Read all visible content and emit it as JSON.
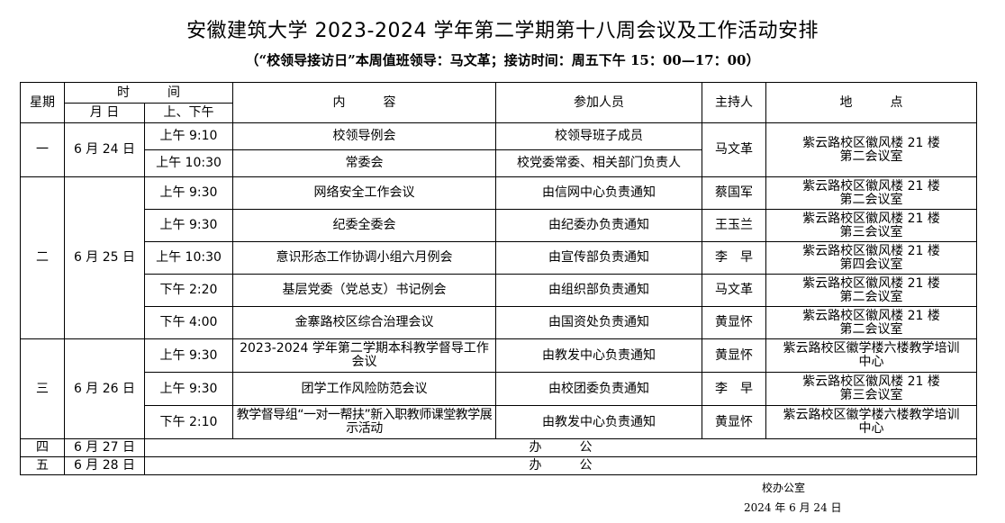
{
  "title": "安徽建筑大学 2023-2024 学年第二学期第十八周会议及工作活动安排",
  "subtitle": "（“校领导接访日”本周值班领导：马文革；接访时间：周五下午 15：00—17：00）",
  "headers": {
    "weekday": "星期",
    "time": "时　　　间",
    "date": "月 日",
    "ampm": "上、下午",
    "content": "内　　　容",
    "participants": "参加人员",
    "host": "主持人",
    "location": "地　　　点"
  },
  "days": [
    {
      "weekday": "一",
      "date": "6 月 24 日",
      "host": "马文革",
      "location": "紫云路校区徽风楼 21 楼第二会议室",
      "items": [
        {
          "time": "上午 9:10",
          "content": "校领导例会",
          "participants": "校领导班子成员"
        },
        {
          "time": "上午 10:30",
          "content": "常委会",
          "participants": "校党委常委、相关部门负责人"
        }
      ]
    },
    {
      "weekday": "二",
      "date": "6 月 25 日",
      "items": [
        {
          "time": "上午 9:30",
          "content": "网络安全工作会议",
          "participants": "由信网中心负责通知",
          "host": "蔡国军",
          "location": "紫云路校区徽风楼 21 楼第二会议室"
        },
        {
          "time": "上午 9:30",
          "content": "纪委全委会",
          "participants": "由纪委办负责通知",
          "host": "王玉兰",
          "location": "紫云路校区徽风楼 21 楼第三会议室"
        },
        {
          "time": "上午 10:30",
          "content": "意识形态工作协调小组六月例会",
          "participants": "由宣传部负责通知",
          "host": "李　早",
          "location": "紫云路校区徽风楼 21 楼第四会议室"
        },
        {
          "time": "下午 2:20",
          "content": "基层党委（党总支）书记例会",
          "participants": "由组织部负责通知",
          "host": "马文革",
          "location": "紫云路校区徽风楼 21 楼第二会议室"
        },
        {
          "time": "下午 4:00",
          "content": "金寨路校区综合治理会议",
          "participants": "由国资处负责通知",
          "host": "黄显怀",
          "location": "紫云路校区徽风楼 21 楼第二会议室"
        }
      ]
    },
    {
      "weekday": "三",
      "date": "6 月 26 日",
      "items": [
        {
          "time": "上午 9:30",
          "content": "2023-2024 学年第二学期本科教学督导工作会议",
          "participants": "由教发中心负责通知",
          "host": "黄显怀",
          "location": "紫云路校区徽学楼六楼教学培训中心"
        },
        {
          "time": "上午 9:30",
          "content": "团学工作风险防范会议",
          "participants": "由校团委负责通知",
          "host": "李　早",
          "location": "紫云路校区徽风楼 21 楼第三会议室"
        },
        {
          "time": "下午 2:10",
          "content": "教学督导组“一对一帮扶”新入职教师课堂教学展示活动",
          "participants": "由教发中心负责通知",
          "host": "黄显怀",
          "location": "紫云路校区徽学楼六楼教学培训中心"
        }
      ]
    },
    {
      "weekday": "四",
      "date": "6 月 27 日",
      "note": "办　　　公"
    },
    {
      "weekday": "五",
      "date": "6 月 28 日",
      "note": "办　　　公"
    }
  ],
  "footer": {
    "office": "校办公室",
    "date": "2024 年 6 月 24 日"
  }
}
